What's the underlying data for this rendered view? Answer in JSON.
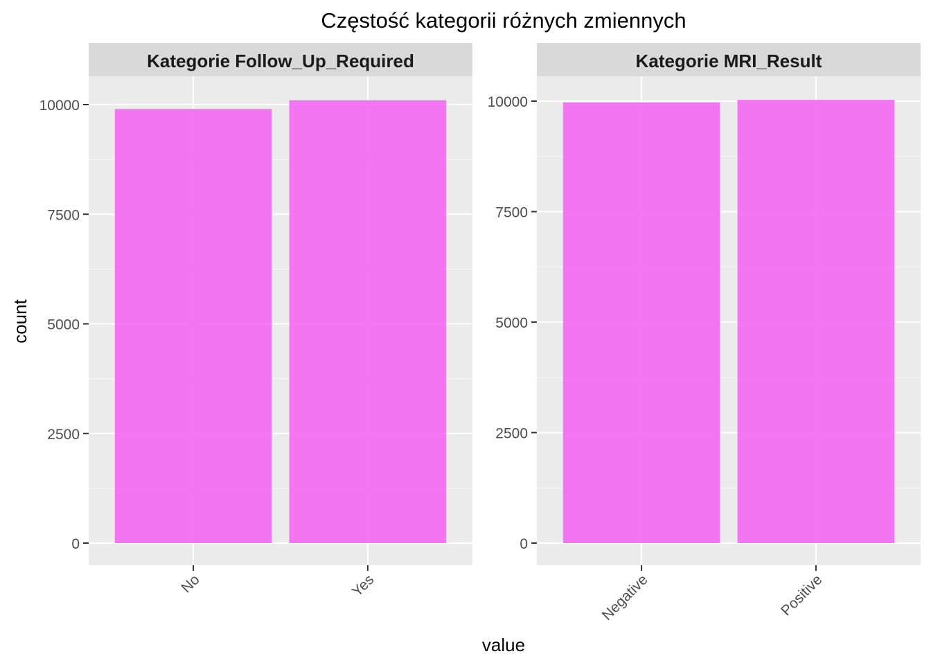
{
  "title": "Częstość kategorii różnych zmiennych",
  "xlabel": "value",
  "ylabel": "count",
  "colors": {
    "bar": "#f46ff2",
    "panel_bg": "#ebebeb",
    "strip_bg": "#d9d9d9",
    "grid": "#ffffff"
  },
  "chart_data": [
    {
      "type": "bar",
      "title": "Kategorie Follow_Up_Required",
      "categories": [
        "No",
        "Yes"
      ],
      "values": [
        9900,
        10100
      ],
      "ylim": [
        0,
        10500
      ],
      "yticks": [
        0,
        2500,
        5000,
        7500,
        10000
      ],
      "yticklabels": [
        "0",
        "2500",
        "5000",
        "7500",
        "10000"
      ],
      "xlabel": "value",
      "ylabel": "count",
      "grid": true
    },
    {
      "type": "bar",
      "title": "Kategorie MRI_Result",
      "categories": [
        "Negative",
        "Positive"
      ],
      "values": [
        9970,
        10030
      ],
      "ylim": [
        0,
        10550
      ],
      "yticks": [
        0,
        2500,
        5000,
        7500,
        10000
      ],
      "yticklabels": [
        "0",
        "2500",
        "5000",
        "7500",
        "10000"
      ],
      "xlabel": "value",
      "ylabel": "count",
      "grid": true
    }
  ]
}
